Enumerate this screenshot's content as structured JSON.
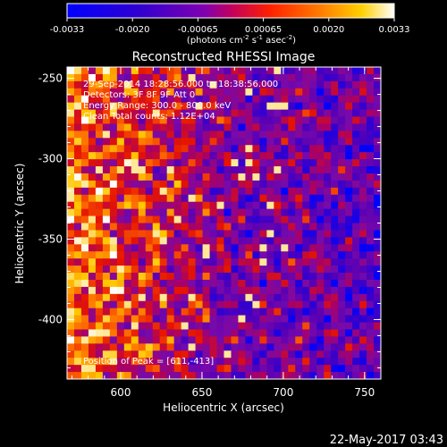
{
  "colorbar": {
    "ticks": [
      "-0.0033",
      "-0.0020",
      "-0.00065",
      "0.00065",
      "0.0020",
      "0.0033"
    ],
    "unit_prefix": "(photons cm",
    "unit_sup1": "-2",
    "unit_mid1": " s",
    "unit_sup2": "-1",
    "unit_mid2": " asec",
    "unit_sup3": "-2",
    "unit_suffix": ")"
  },
  "chart_data": {
    "type": "heatmap",
    "title": "Reconstructed RHESSI Image",
    "xlabel": "Heliocentric X (arcsec)",
    "ylabel": "Heliocentric Y (arcsec)",
    "xlim": [
      567,
      760
    ],
    "ylim": [
      -437,
      -243
    ],
    "x_ticks": [
      "600",
      "650",
      "700",
      "750"
    ],
    "y_ticks": [
      "-250",
      "-300",
      "-350",
      "-400"
    ],
    "zlim": [
      -0.0033,
      0.0033
    ],
    "annotations": [
      "29-Sep-2014 18:28:56.000 to 18:38:56.000",
      "Detectors: 3F 8F 9F  Att 0",
      "Energy Range: 300.0 - 800.0 keV",
      "Clean     Total counts: 1.12E+04",
      "Position of Peak = [611,-413]"
    ],
    "peak_position": [
      611,
      -413
    ]
  },
  "footer": {
    "timestamp": "22-May-2017 03:43"
  }
}
